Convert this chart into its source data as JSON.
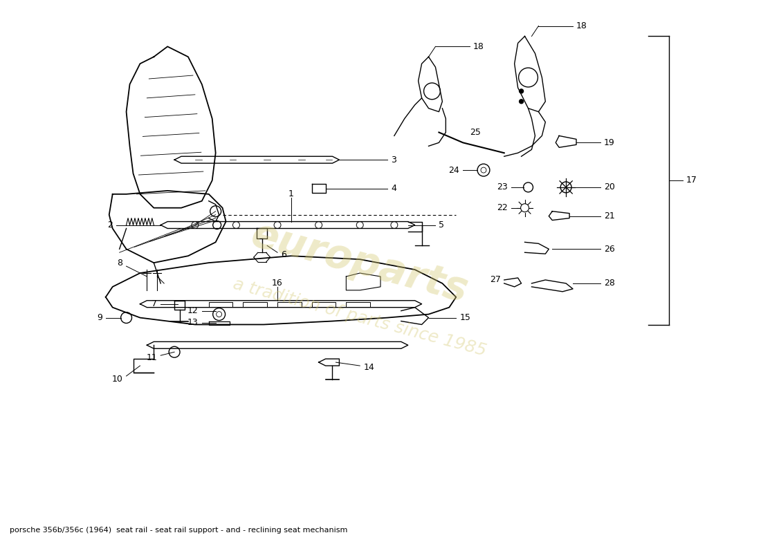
{
  "title": "porsche 356b/356c (1964)  seat rail - seat rail support - and - reclining seat mechanism",
  "bg_color": "#ffffff",
  "line_color": "#000000",
  "watermark_text": "europarts",
  "watermark_subtext": "a tradition of parts since 1985",
  "watermark_color": "#d4c870",
  "watermark_alpha": 0.38,
  "figsize": [
    11.0,
    8.0
  ],
  "dpi": 100
}
